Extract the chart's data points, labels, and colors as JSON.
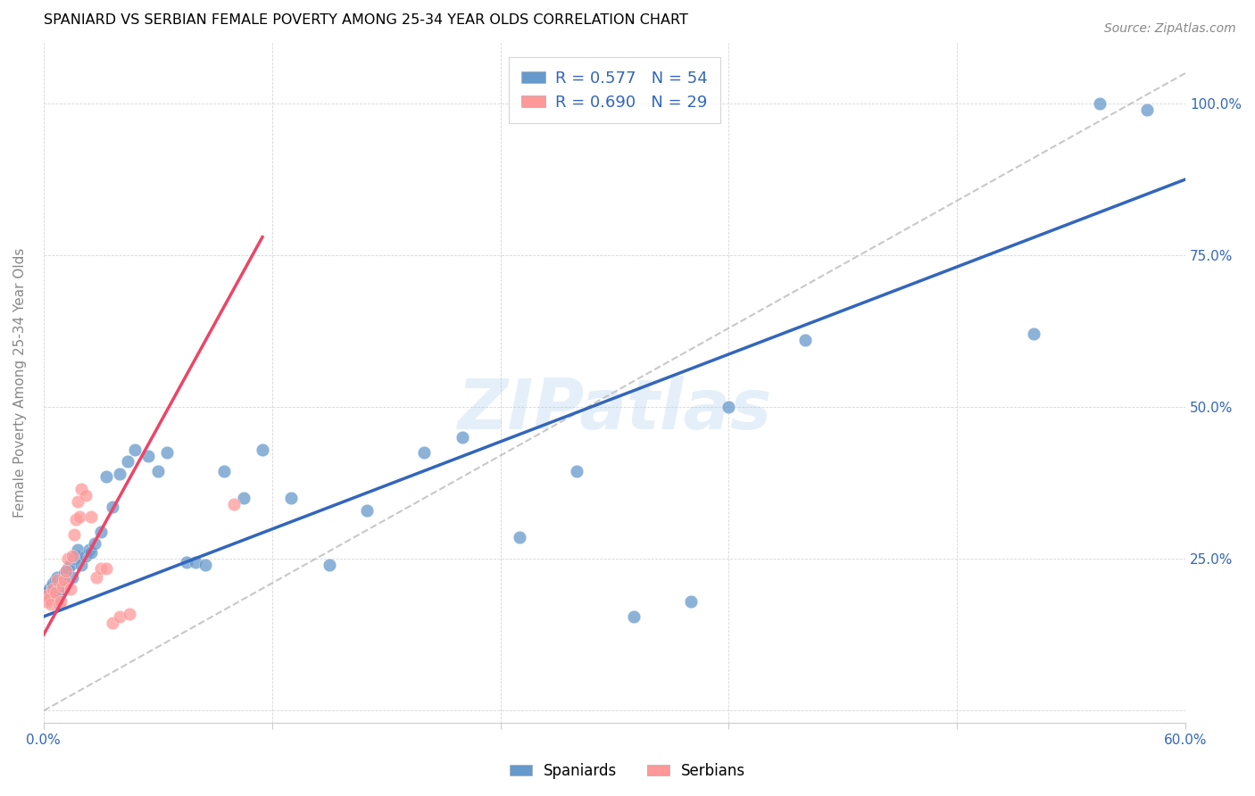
{
  "title": "SPANIARD VS SERBIAN FEMALE POVERTY AMONG 25-34 YEAR OLDS CORRELATION CHART",
  "source": "Source: ZipAtlas.com",
  "ylabel": "Female Poverty Among 25-34 Year Olds",
  "xlim": [
    0.0,
    0.6
  ],
  "ylim": [
    -0.02,
    1.1
  ],
  "xtick_positions": [
    0.0,
    0.12,
    0.24,
    0.36,
    0.48,
    0.6
  ],
  "xtick_labels": [
    "0.0%",
    "",
    "",
    "",
    "",
    "60.0%"
  ],
  "ytick_positions": [
    0.0,
    0.25,
    0.5,
    0.75,
    1.0
  ],
  "ytick_labels": [
    "",
    "25.0%",
    "50.0%",
    "75.0%",
    "100.0%"
  ],
  "spaniard_color": "#6699CC",
  "serbian_color": "#FF9999",
  "blue_line_color": "#3366BB",
  "pink_line_color": "#EE4466",
  "watermark": "ZIPatlas",
  "spaniard_x": [
    0.001,
    0.002,
    0.003,
    0.004,
    0.005,
    0.005,
    0.006,
    0.007,
    0.007,
    0.008,
    0.009,
    0.01,
    0.011,
    0.012,
    0.013,
    0.014,
    0.015,
    0.016,
    0.017,
    0.018,
    0.02,
    0.022,
    0.024,
    0.025,
    0.027,
    0.03,
    0.033,
    0.036,
    0.04,
    0.044,
    0.048,
    0.055,
    0.06,
    0.065,
    0.075,
    0.08,
    0.085,
    0.095,
    0.105,
    0.115,
    0.13,
    0.15,
    0.17,
    0.2,
    0.22,
    0.25,
    0.28,
    0.31,
    0.34,
    0.36,
    0.4,
    0.52,
    0.555,
    0.58
  ],
  "spaniard_y": [
    0.185,
    0.195,
    0.2,
    0.19,
    0.205,
    0.21,
    0.215,
    0.22,
    0.185,
    0.19,
    0.2,
    0.215,
    0.225,
    0.23,
    0.235,
    0.24,
    0.22,
    0.25,
    0.255,
    0.265,
    0.24,
    0.255,
    0.265,
    0.26,
    0.275,
    0.295,
    0.385,
    0.335,
    0.39,
    0.41,
    0.43,
    0.42,
    0.395,
    0.425,
    0.245,
    0.245,
    0.24,
    0.395,
    0.35,
    0.43,
    0.35,
    0.24,
    0.33,
    0.425,
    0.45,
    0.285,
    0.395,
    0.155,
    0.18,
    0.5,
    0.61,
    0.62,
    1.0,
    0.99
  ],
  "serbian_x": [
    0.001,
    0.002,
    0.003,
    0.004,
    0.005,
    0.006,
    0.007,
    0.008,
    0.009,
    0.01,
    0.011,
    0.012,
    0.013,
    0.014,
    0.015,
    0.016,
    0.017,
    0.018,
    0.019,
    0.02,
    0.022,
    0.025,
    0.028,
    0.03,
    0.033,
    0.036,
    0.04,
    0.045,
    0.1
  ],
  "serbian_y": [
    0.18,
    0.19,
    0.185,
    0.175,
    0.2,
    0.195,
    0.215,
    0.175,
    0.18,
    0.205,
    0.215,
    0.23,
    0.25,
    0.2,
    0.255,
    0.29,
    0.315,
    0.345,
    0.32,
    0.365,
    0.355,
    0.32,
    0.22,
    0.235,
    0.235,
    0.145,
    0.155,
    0.16,
    0.34
  ],
  "blue_line_x": [
    0.0,
    0.6
  ],
  "blue_line_y": [
    0.155,
    0.875
  ],
  "pink_line_x": [
    0.0,
    0.115
  ],
  "pink_line_y": [
    0.125,
    0.78
  ],
  "diag_line_x": [
    0.0,
    0.6
  ],
  "diag_line_y": [
    0.0,
    1.05
  ]
}
